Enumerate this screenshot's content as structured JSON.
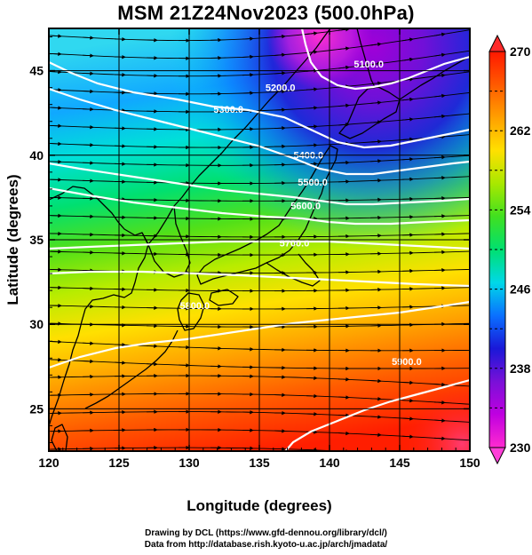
{
  "title": "MSM 21Z24Nov2023 (500.0hPa)",
  "map": {
    "lon_range": [
      120,
      150
    ],
    "lat_range": [
      22.5,
      47.5
    ],
    "x_ticks": [
      120,
      125,
      130,
      135,
      140,
      145,
      150
    ],
    "y_ticks": [
      25,
      30,
      35,
      40,
      45
    ],
    "xlabel": "Longitude (degrees)",
    "ylabel": "Latitude  (degrees)",
    "gridlines": true,
    "shading_variable_range": [
      230,
      270
    ],
    "contour_labels": [
      {
        "text": "5100.0",
        "lon": 142.8,
        "lat": 45.2
      },
      {
        "text": "5200.0",
        "lon": 136.5,
        "lat": 43.8
      },
      {
        "text": "5300.0",
        "lon": 132.8,
        "lat": 42.5
      },
      {
        "text": "5400.0",
        "lon": 138.5,
        "lat": 39.8
      },
      {
        "text": "5500.0",
        "lon": 138.8,
        "lat": 38.2
      },
      {
        "text": "5600.0",
        "lon": 138.3,
        "lat": 36.8
      },
      {
        "text": "5700.0",
        "lon": 137.5,
        "lat": 34.6
      },
      {
        "text": "5800.0",
        "lon": 130.4,
        "lat": 30.9
      },
      {
        "text": "5900.0",
        "lon": 145.5,
        "lat": 27.6
      }
    ]
  },
  "colorbar": {
    "min": 230,
    "max": 270,
    "labels": [
      "270",
      "262",
      "254",
      "246",
      "238",
      "230"
    ],
    "label_values": [
      270,
      262,
      254,
      246,
      238,
      230
    ],
    "colors_bottom_to_top": [
      "#ff2bd0",
      "#c000e0",
      "#7a10d8",
      "#1a18d8",
      "#0a70ff",
      "#00d8e8",
      "#00e070",
      "#40e020",
      "#a8e800",
      "#ffe000",
      "#ffa000",
      "#ff5a00",
      "#ff1800"
    ]
  },
  "credit": {
    "line1": "Drawing by DCL (https://www.gfd-dennou.org/library/dcl/)",
    "line2": "Data from http://database.rish.kyoto-u.ac.jp/arch/jmadata/"
  }
}
